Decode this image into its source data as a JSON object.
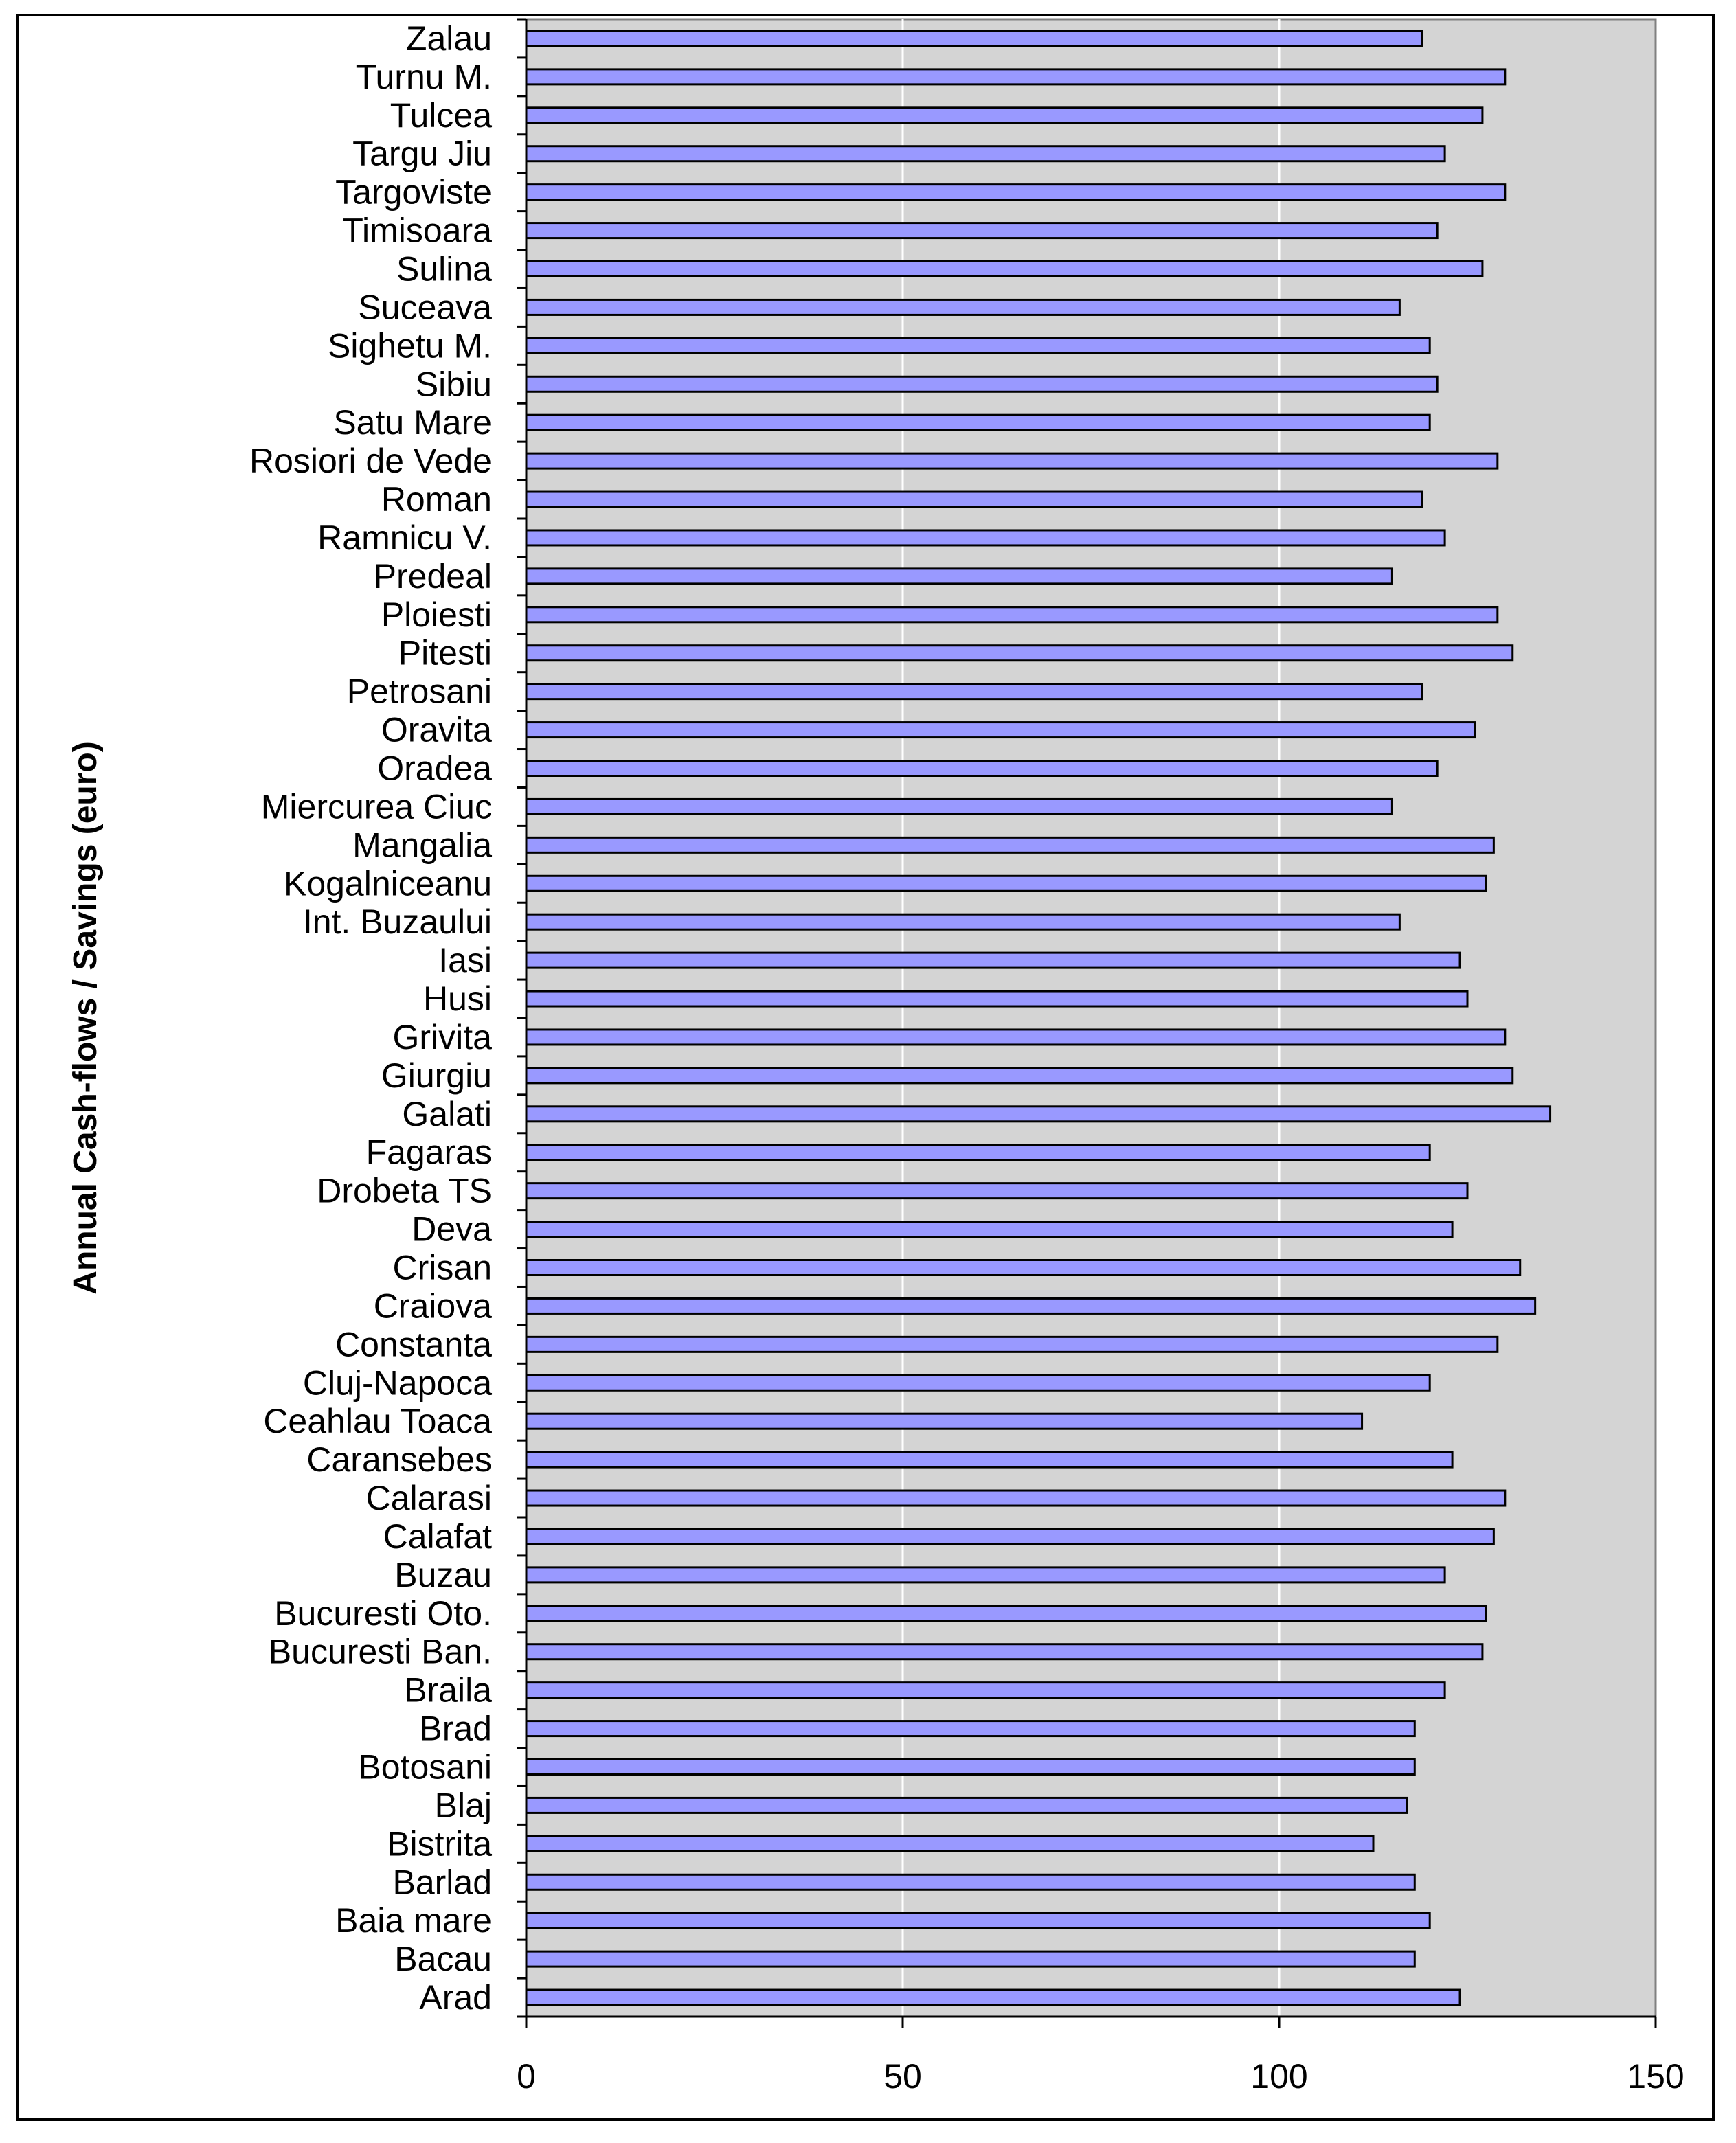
{
  "chart_data": {
    "type": "bar",
    "orientation": "horizontal",
    "ylabel": "Annual Cash-flows / Savings (euro)",
    "xlabel": "",
    "xlim": [
      0,
      150
    ],
    "xticks": [
      "0",
      "50",
      "100",
      "150"
    ],
    "grid": "vertical",
    "colors": {
      "plot_bg": "#d4d4d4",
      "bar_fill": "#9999ff",
      "bar_stroke": "#000000"
    },
    "categories": [
      "Zalau",
      "Turnu M.",
      "Tulcea",
      "Targu Jiu",
      "Targoviste",
      "Timisoara",
      "Sulina",
      "Suceava",
      "Sighetu M.",
      "Sibiu",
      "Satu Mare",
      "Rosiori de Vede",
      "Roman",
      "Ramnicu V.",
      "Predeal",
      "Ploiesti",
      "Pitesti",
      "Petrosani",
      "Oravita",
      "Oradea",
      "Miercurea Ciuc",
      "Mangalia",
      "Kogalniceanu",
      "Int. Buzaului",
      "Iasi",
      "Husi",
      "Grivita",
      "Giurgiu",
      "Galati",
      "Fagaras",
      "Drobeta TS",
      "Deva",
      "Crisan",
      "Craiova",
      "Constanta",
      "Cluj-Napoca",
      "Ceahlau Toaca",
      "Caransebes",
      "Calarasi",
      "Calafat",
      "Buzau",
      "Bucuresti Oto.",
      "Bucuresti Ban.",
      "Braila",
      "Brad",
      "Botosani",
      "Blaj",
      "Bistrita",
      "Barlad",
      "Baia mare",
      "Bacau",
      "Arad"
    ],
    "values": [
      119,
      130,
      127,
      122,
      130,
      121,
      127,
      116,
      120,
      121,
      120,
      129,
      119,
      122,
      115,
      129,
      131,
      119,
      126,
      121,
      115,
      128.5,
      127.5,
      116,
      124,
      125,
      130,
      131,
      136,
      120,
      125,
      123,
      132,
      134,
      129,
      120,
      111,
      123,
      130,
      128.5,
      122,
      127.5,
      127,
      122,
      118,
      118,
      117,
      112.5,
      118,
      120,
      118,
      124
    ]
  }
}
